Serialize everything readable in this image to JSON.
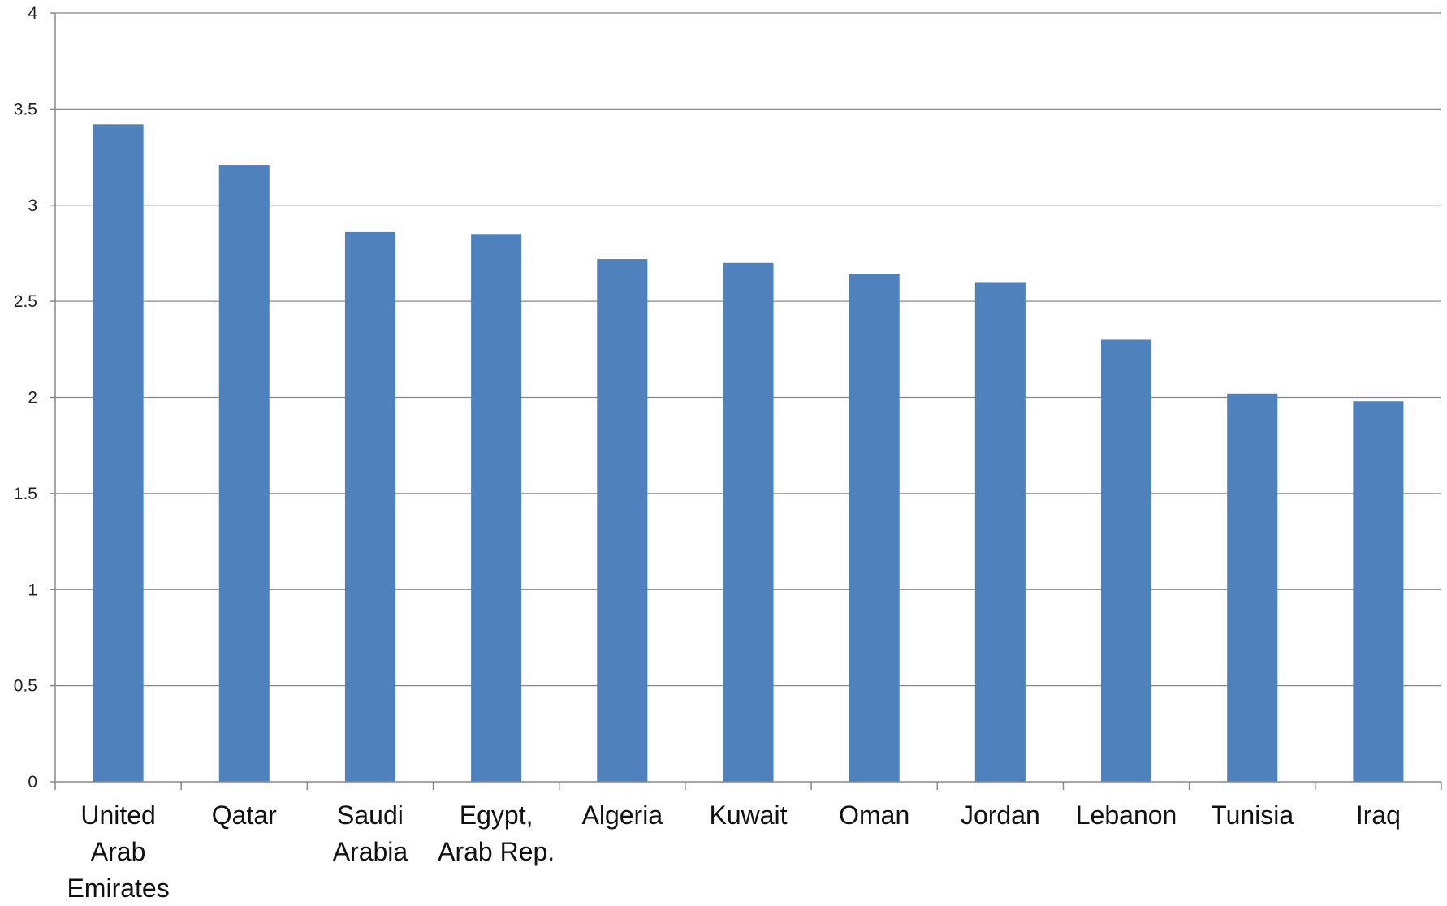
{
  "chart_data": {
    "type": "bar",
    "title": "",
    "xlabel": "",
    "ylabel": "",
    "categories": [
      [
        "United",
        "Arab",
        "Emirates"
      ],
      [
        "Qatar"
      ],
      [
        "Saudi",
        "Arabia"
      ],
      [
        "Egypt,",
        "Arab Rep."
      ],
      [
        "Algeria"
      ],
      [
        "Kuwait"
      ],
      [
        "Oman"
      ],
      [
        "Jordan"
      ],
      [
        "Lebanon"
      ],
      [
        "Tunisia"
      ],
      [
        "Iraq"
      ]
    ],
    "values": [
      3.42,
      3.21,
      2.86,
      2.85,
      2.72,
      2.7,
      2.64,
      2.6,
      2.3,
      2.02,
      1.98
    ],
    "ylim": [
      0,
      4
    ],
    "yticks": [
      "0",
      "0.5",
      "1",
      "1.5",
      "2",
      "2.5",
      "3",
      "3.5",
      "4"
    ],
    "grid": true,
    "legend": "none",
    "bar_color": "#4f81bd"
  }
}
